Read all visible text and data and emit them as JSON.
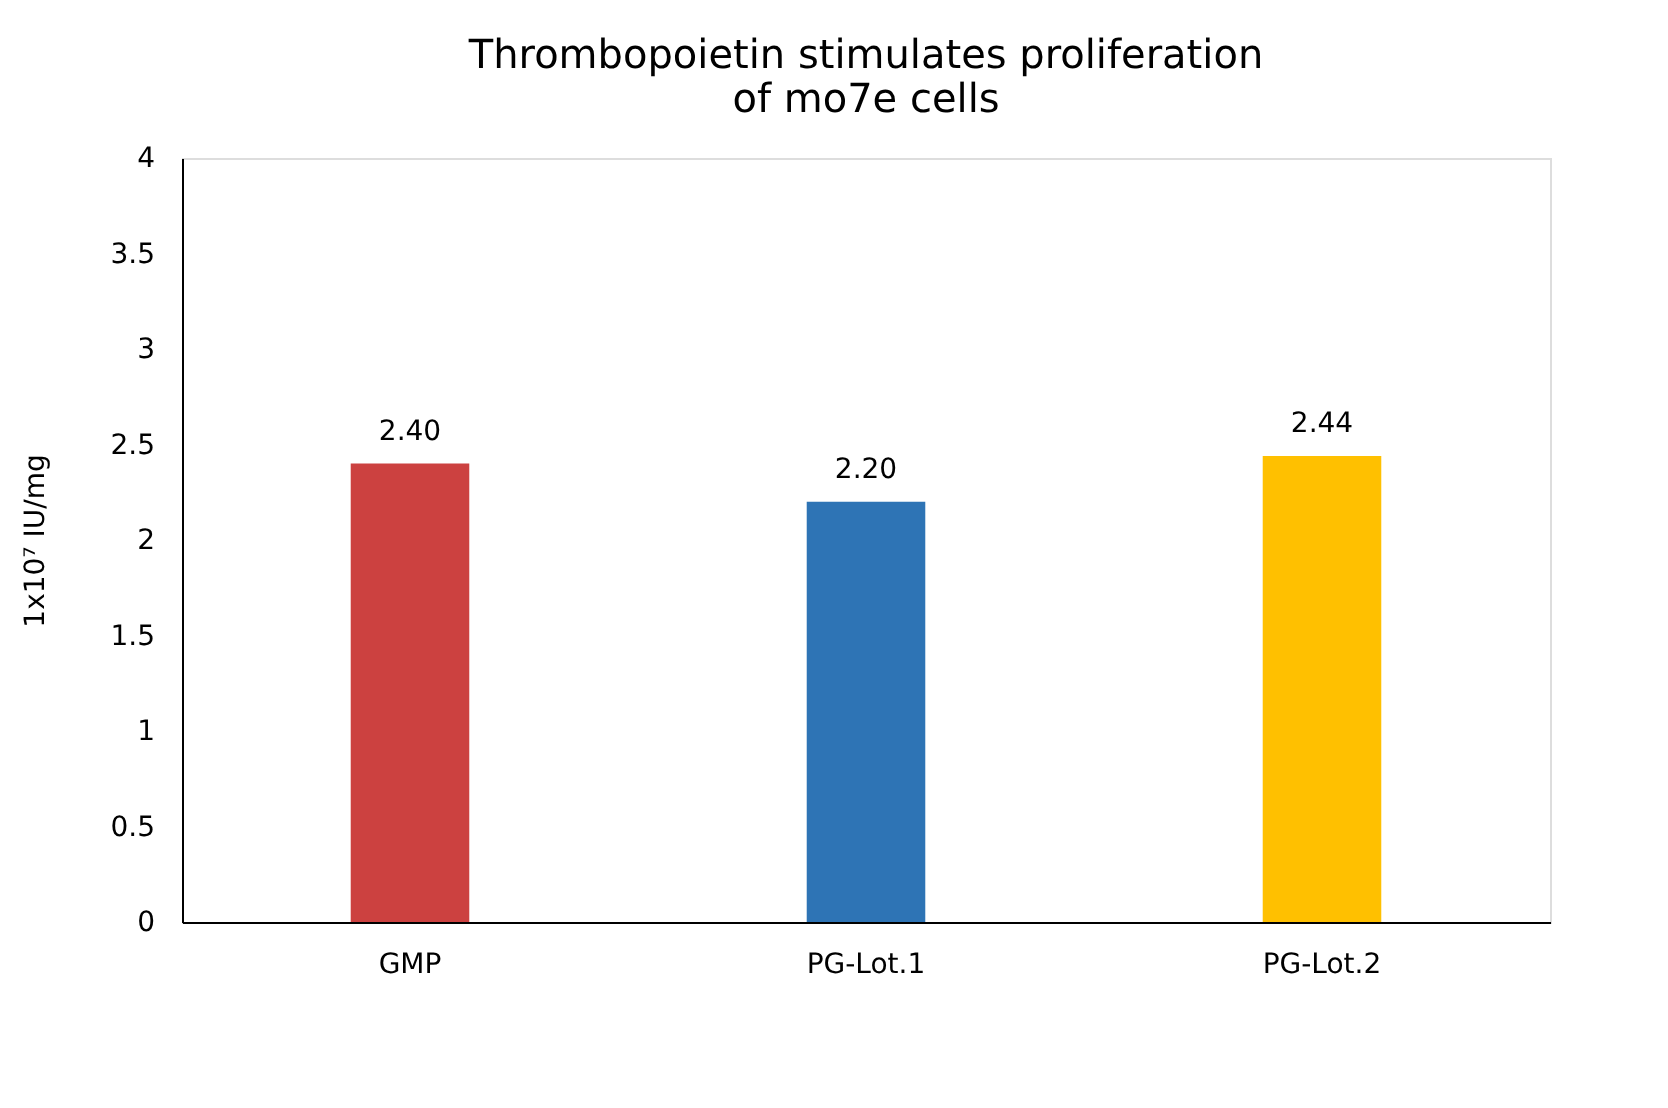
{
  "chart_data": {
    "type": "bar",
    "title": [
      "Thrombopoietin stimulates proliferation",
      "of mo7e cells"
    ],
    "ylabel": "1x10⁷ IU/mg",
    "categories": [
      "GMP",
      "PG-Lot.1",
      "PG-Lot.2"
    ],
    "values": [
      2.4,
      2.2,
      2.44
    ],
    "colors": [
      "#cc4140",
      "#2e74b5",
      "#ffc000"
    ],
    "value_labels": [
      "2.40",
      "2.20",
      "2.44"
    ],
    "ylim": [
      0,
      4
    ],
    "yticks": [
      0,
      0.5,
      1,
      1.5,
      2,
      2.5,
      3,
      3.5,
      4
    ],
    "grid": false,
    "legend": false
  }
}
